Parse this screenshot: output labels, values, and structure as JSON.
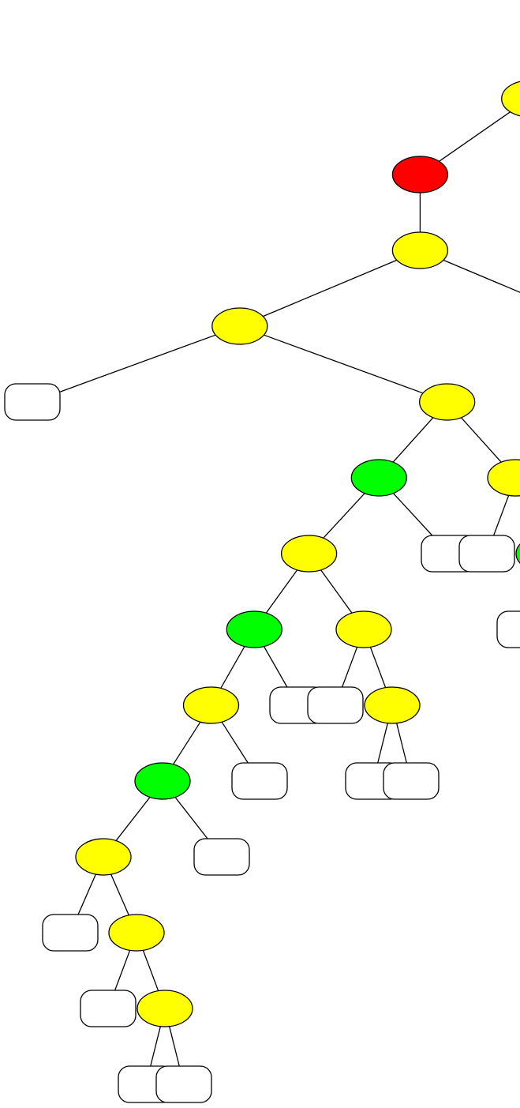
{
  "colors": {
    "yellow": "#ffff00",
    "red": "#ff0000",
    "green": "#00ff00",
    "leaf": "#ffffff",
    "stroke": "#000000"
  },
  "tree": {
    "color": "yellow",
    "children": [
      {
        "color": "red",
        "children": [
          {
            "color": "yellow",
            "children": [
              {
                "color": "yellow",
                "children": [
                  {
                    "leaf": true
                  },
                  {
                    "color": "yellow",
                    "children": [
                      {
                        "color": "green",
                        "children": [
                          {
                            "color": "yellow",
                            "children": [
                              {
                                "color": "green",
                                "children": [
                                  {
                                    "color": "yellow",
                                    "children": [
                                      {
                                        "color": "green",
                                        "children": [
                                          {
                                            "color": "yellow",
                                            "children": [
                                              {
                                                "leaf": true
                                              },
                                              {
                                                "color": "yellow",
                                                "children": [
                                                  {
                                                    "leaf": true
                                                  },
                                                  {
                                                    "color": "yellow",
                                                    "children": [
                                                      {
                                                        "leaf": true
                                                      },
                                                      {
                                                        "leaf": true
                                                      }
                                                    ]
                                                  }
                                                ]
                                              }
                                            ]
                                          },
                                          {
                                            "leaf": true
                                          }
                                        ]
                                      },
                                      {
                                        "leaf": true
                                      }
                                    ]
                                  },
                                  {
                                    "leaf": true
                                  }
                                ]
                              },
                              {
                                "color": "yellow",
                                "children": [
                                  {
                                    "leaf": true
                                  },
                                  {
                                    "color": "yellow",
                                    "children": [
                                      {
                                        "leaf": true
                                      },
                                      {
                                        "leaf": true
                                      }
                                    ]
                                  }
                                ]
                              }
                            ]
                          },
                          {
                            "leaf": true
                          }
                        ]
                      },
                      {
                        "color": "yellow",
                        "children": [
                          {
                            "leaf": true
                          },
                          {
                            "color": "green",
                            "children": [
                              {
                                "leaf": true
                              },
                              {
                                "leaf": true
                              }
                            ]
                          }
                        ]
                      }
                    ]
                  }
                ]
              },
              {
                "leaf": true
              }
            ]
          }
        ]
      },
      {
        "leaf": true
      }
    ]
  }
}
